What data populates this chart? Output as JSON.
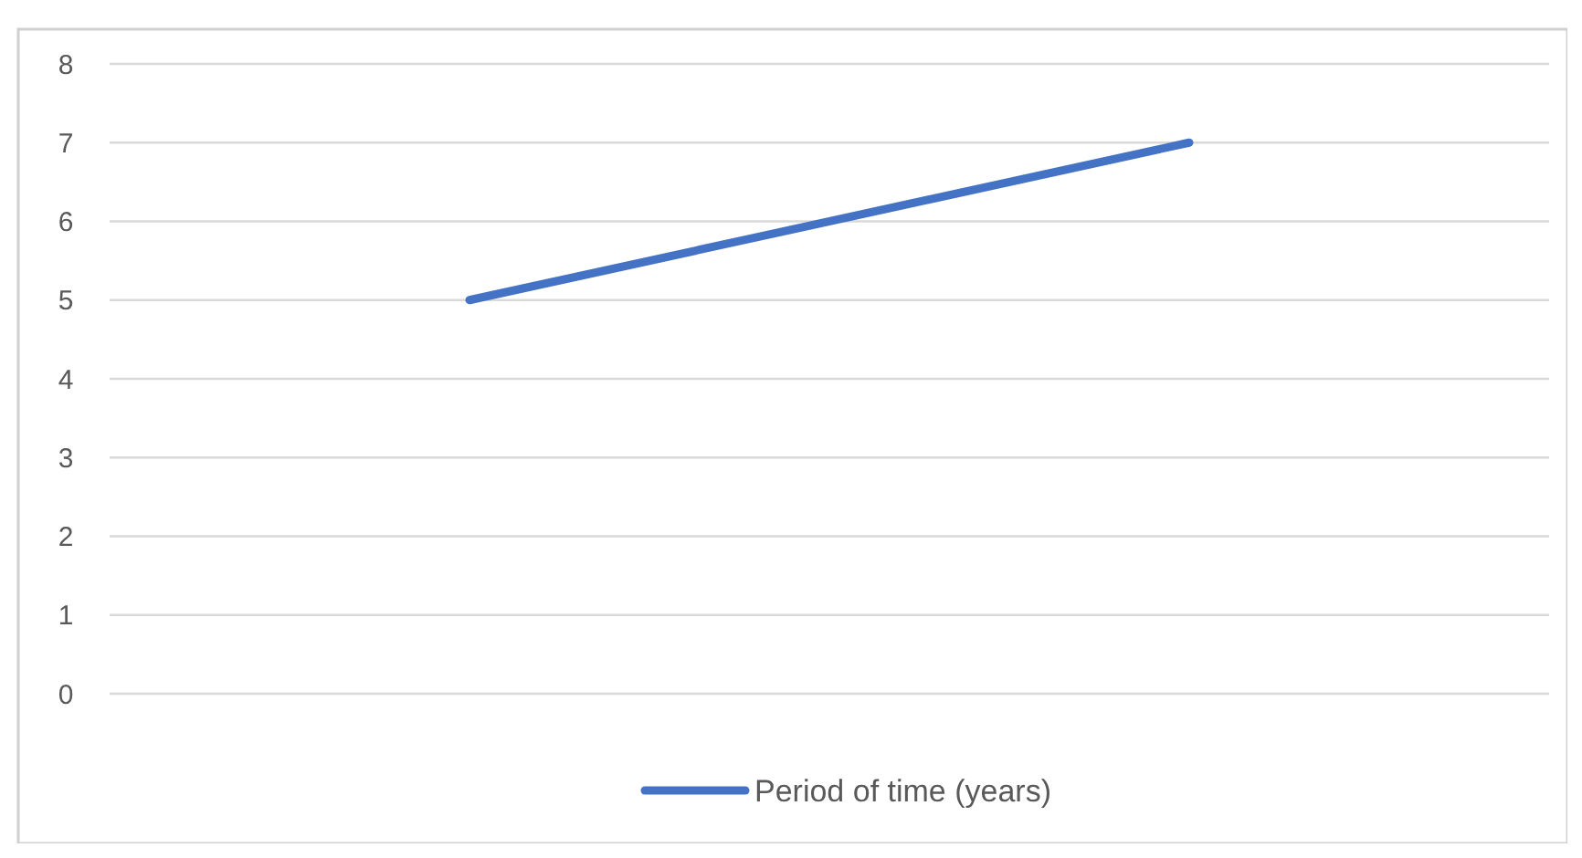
{
  "chart_data": {
    "type": "line",
    "categories": [
      null,
      null
    ],
    "series": [
      {
        "name": "Period of time (years)",
        "color": "#4472c4",
        "values": [
          5,
          7
        ]
      }
    ],
    "ylim": [
      0,
      8
    ],
    "yticks": [
      0,
      1,
      2,
      3,
      4,
      5,
      6,
      7,
      8
    ],
    "grid": "y",
    "legend": "bottom",
    "marker": "none",
    "line_style": "solid"
  }
}
